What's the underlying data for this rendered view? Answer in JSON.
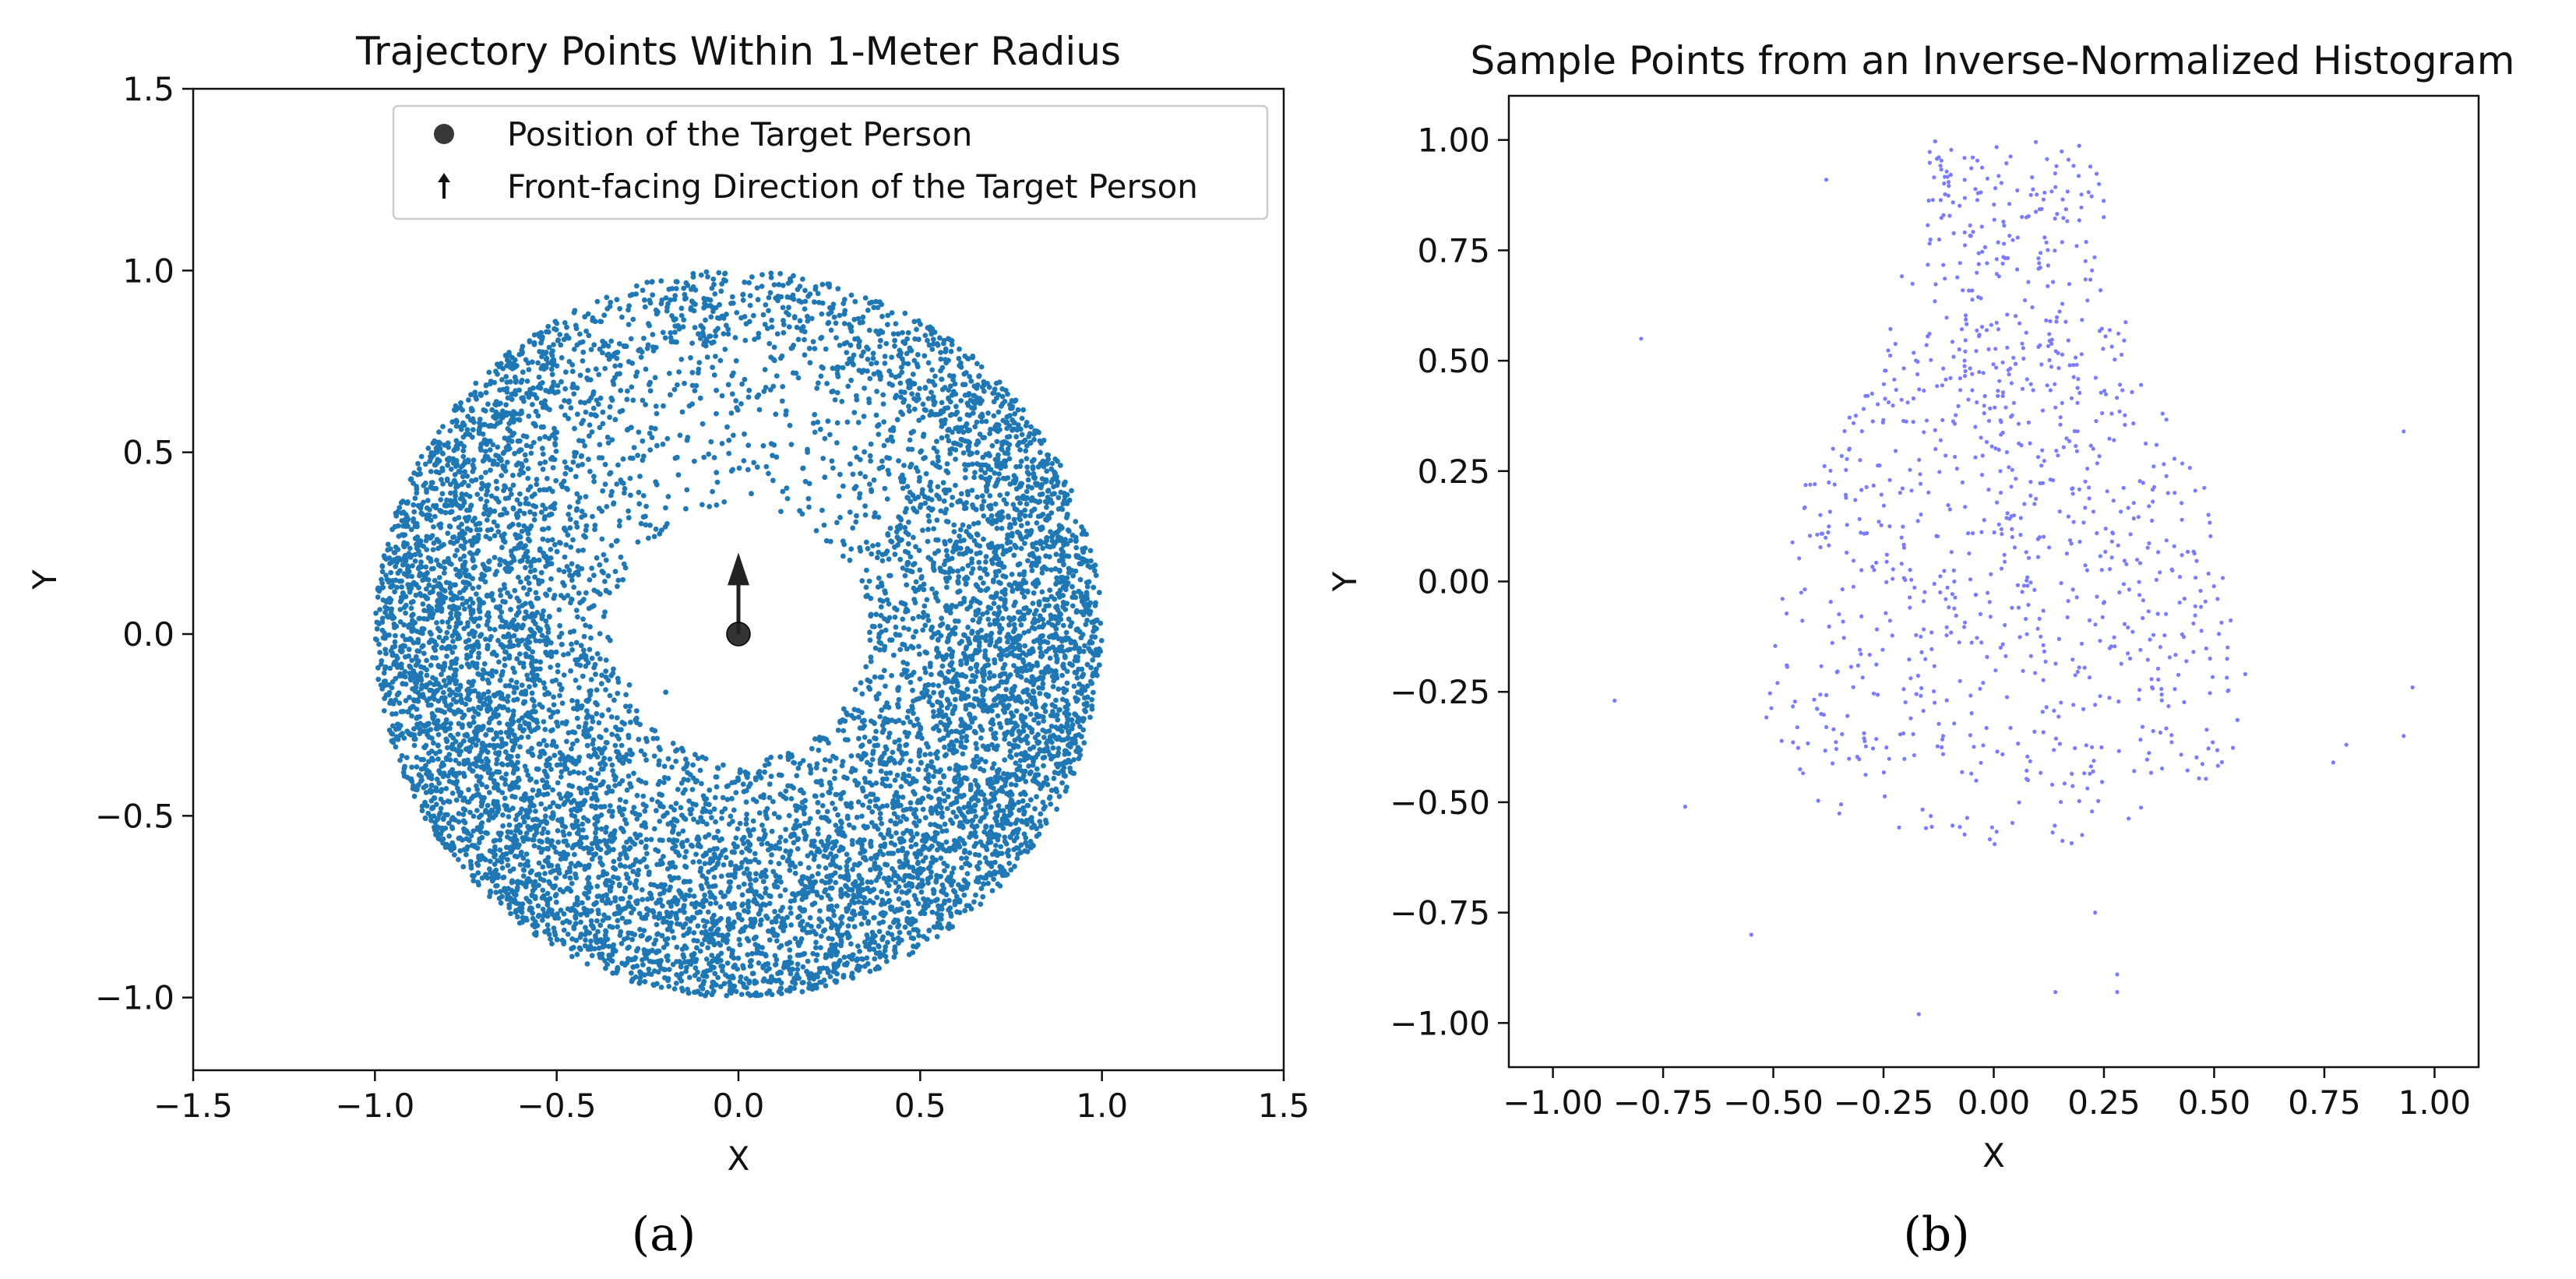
{
  "chart_data": [
    {
      "id": "a",
      "type": "scatter",
      "panel_label": "(a)",
      "title": "Trajectory Points Within 1-Meter Radius",
      "xlabel": "X",
      "ylabel": "Y",
      "xlim": [
        -1.5,
        1.5
      ],
      "ylim": [
        -1.2,
        1.5
      ],
      "xticks": [
        -1.5,
        -1.0,
        -0.5,
        0.0,
        0.5,
        1.0,
        1.5
      ],
      "xtick_labels": [
        "−1.5",
        "−1.0",
        "−0.5",
        "0.0",
        "0.5",
        "1.0",
        "1.5"
      ],
      "yticks": [
        -1.0,
        -0.5,
        0.0,
        0.5,
        1.0,
        1.5
      ],
      "ytick_labels": [
        "−1.0",
        "−0.5",
        "0.0",
        "0.5",
        "1.0",
        "1.5"
      ],
      "point_color": "#1f77b4",
      "series": {
        "name": "Trajectory points",
        "description": "dense annulus of points between radius ~0.35 m and 1.0 m around the origin, with dense clusters at left and right sides and lower band; sparse near front-center",
        "inner_radius": 0.35,
        "outer_radius": 1.0,
        "approx_count": 9000
      },
      "target_person": {
        "x": 0.0,
        "y": 0.0,
        "color": "#222222"
      },
      "facing_direction": {
        "x": 0.0,
        "y": 0.0,
        "dx": 0.0,
        "dy": 0.22
      },
      "legend": {
        "placement": "upper-right",
        "entries": [
          "Position of the Target Person",
          "Front-facing Direction of the Target Person"
        ]
      }
    },
    {
      "id": "b",
      "type": "scatter",
      "panel_label": "(b)",
      "title": "Sample Points from an Inverse-Normalized Histogram",
      "xlabel": "X",
      "ylabel": "Y",
      "xlim": [
        -1.1,
        1.1
      ],
      "ylim": [
        -1.1,
        1.1
      ],
      "xticks": [
        -1.0,
        -0.75,
        -0.5,
        -0.25,
        0.0,
        0.25,
        0.5,
        0.75,
        1.0
      ],
      "xtick_labels": [
        "−1.00",
        "−0.75",
        "−0.50",
        "−0.25",
        "0.00",
        "0.25",
        "0.50",
        "0.75",
        "1.00"
      ],
      "yticks": [
        -1.0,
        -0.75,
        -0.5,
        -0.25,
        0.0,
        0.25,
        0.5,
        0.75,
        1.0
      ],
      "ytick_labels": [
        "−1.00",
        "−0.75",
        "−0.50",
        "−0.25",
        "0.00",
        "0.25",
        "0.50",
        "0.75",
        "1.00"
      ],
      "point_color": "#7b7bff",
      "series": {
        "name": "Sampled points",
        "description": "bell-shaped cloud centered near x=0.05, widest around y=-0.3 (x from -0.55 to 0.6), narrowing toward y=1.0 (x from -0.15 to 0.3); few outliers",
        "approx_count": 1000,
        "outliers": [
          {
            "x": -0.8,
            "y": 0.55
          },
          {
            "x": 0.93,
            "y": 0.34
          },
          {
            "x": -0.86,
            "y": -0.27
          },
          {
            "x": 0.95,
            "y": -0.24
          },
          {
            "x": 0.93,
            "y": -0.35
          },
          {
            "x": -0.55,
            "y": -0.8
          },
          {
            "x": -0.17,
            "y": -0.98
          },
          {
            "x": 0.14,
            "y": -0.93
          },
          {
            "x": 0.28,
            "y": -0.93
          },
          {
            "x": 0.28,
            "y": -0.89
          },
          {
            "x": 0.23,
            "y": -0.75
          },
          {
            "x": -0.38,
            "y": 0.91
          },
          {
            "x": 0.77,
            "y": -0.41
          },
          {
            "x": 0.8,
            "y": -0.37
          },
          {
            "x": -0.7,
            "y": -0.51
          }
        ]
      }
    }
  ]
}
